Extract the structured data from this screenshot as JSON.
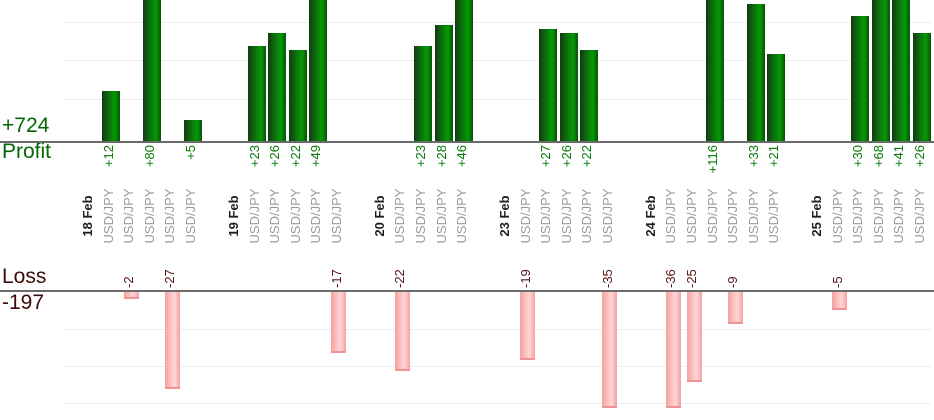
{
  "chart_data": {
    "type": "bar",
    "orientation": "vertical-grouped-by-date",
    "profit_panel": {
      "axis_label": "Profit",
      "total_label": "+724",
      "total": 724,
      "bar_color": "#028a02",
      "text_color": "#056605",
      "note": "bars taller than panel are clipped at top edge"
    },
    "loss_panel": {
      "axis_label": "Loss",
      "total_label": "-197",
      "total": -197,
      "bar_color": "#fbc0c0",
      "text_color": "#3c0c0c",
      "note": "bars longer than panel are clipped at bottom edge"
    },
    "gridline_interval": 10,
    "groups": [
      {
        "date": "18 Feb",
        "trades": [
          {
            "symbol": "USD/JPY",
            "value": 12,
            "label": "+12"
          },
          {
            "symbol": "USD/JPY",
            "value": -2,
            "label": "-2"
          },
          {
            "symbol": "USD/JPY",
            "value": 80,
            "label": "+80"
          },
          {
            "symbol": "USD/JPY",
            "value": -27,
            "label": "-27"
          },
          {
            "symbol": "USD/JPY",
            "value": 5,
            "label": "+5"
          }
        ]
      },
      {
        "date": "19 Feb",
        "trades": [
          {
            "symbol": "USD/JPY",
            "value": 23,
            "label": "+23"
          },
          {
            "symbol": "USD/JPY",
            "value": 26,
            "label": "+26"
          },
          {
            "symbol": "USD/JPY",
            "value": 22,
            "label": "+22"
          },
          {
            "symbol": "USD/JPY",
            "value": 49,
            "label": "+49"
          },
          {
            "symbol": "USD/JPY",
            "value": -17,
            "label": "-17"
          }
        ]
      },
      {
        "date": "20 Feb",
        "trades": [
          {
            "symbol": "USD/JPY",
            "value": -22,
            "label": "-22"
          },
          {
            "symbol": "USD/JPY",
            "value": 23,
            "label": "+23"
          },
          {
            "symbol": "USD/JPY",
            "value": 28,
            "label": "+28"
          },
          {
            "symbol": "USD/JPY",
            "value": 46,
            "label": "+46"
          }
        ]
      },
      {
        "date": "23 Feb",
        "trades": [
          {
            "symbol": "USD/JPY",
            "value": -19,
            "label": "-19"
          },
          {
            "symbol": "USD/JPY",
            "value": 27,
            "label": "+27"
          },
          {
            "symbol": "USD/JPY",
            "value": 26,
            "label": "+26"
          },
          {
            "symbol": "USD/JPY",
            "value": 22,
            "label": "+22"
          },
          {
            "symbol": "USD/JPY",
            "value": -35,
            "label": "-35"
          }
        ]
      },
      {
        "date": "24 Feb",
        "trades": [
          {
            "symbol": "USD/JPY",
            "value": -36,
            "label": "-36"
          },
          {
            "symbol": "USD/JPY",
            "value": -25,
            "label": "-25"
          },
          {
            "symbol": "USD/JPY",
            "value": 116,
            "label": "+116"
          },
          {
            "symbol": "USD/JPY",
            "value": -9,
            "label": "-9"
          },
          {
            "symbol": "USD/JPY",
            "value": 33,
            "label": "+33"
          },
          {
            "symbol": "USD/JPY",
            "value": 21,
            "label": "+21"
          }
        ]
      },
      {
        "date": "25 Feb",
        "trades": [
          {
            "symbol": "USD/JPY",
            "value": -5,
            "label": "-5"
          },
          {
            "symbol": "USD/JPY",
            "value": 30,
            "label": "+30"
          },
          {
            "symbol": "USD/JPY",
            "value": 68,
            "label": "+68"
          },
          {
            "symbol": "USD/JPY",
            "value": 41,
            "label": "+41"
          },
          {
            "symbol": "USD/JPY",
            "value": 26,
            "label": "+26"
          }
        ]
      }
    ]
  }
}
